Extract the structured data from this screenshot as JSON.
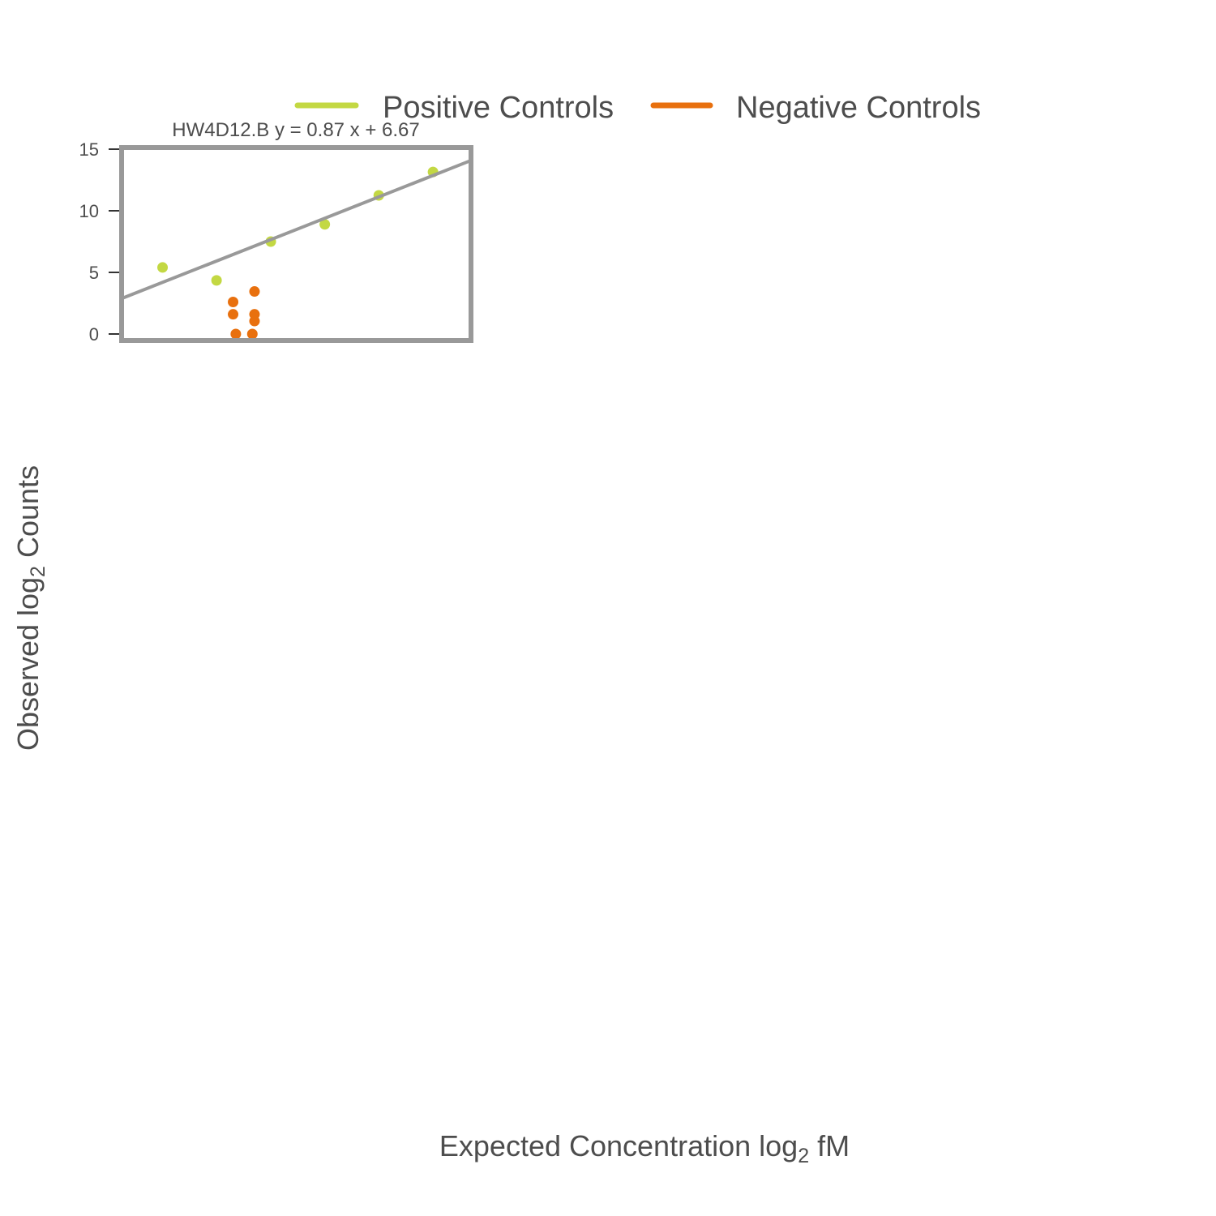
{
  "chart_data": {
    "type": "scatter",
    "title": "HW4D12.B y = 0.87 x + 6.67",
    "xlabel_main": "Expected Concentration log",
    "xlabel_sub": "2",
    "xlabel_tail": " fM",
    "ylabel_main": "Observed log",
    "ylabel_sub": "2",
    "ylabel_tail": " Counts",
    "ylim": [
      0,
      15
    ],
    "yticks": [
      {
        "value": 0,
        "label": "0"
      },
      {
        "value": 5,
        "label": "5"
      },
      {
        "value": 10,
        "label": "10"
      },
      {
        "value": 15,
        "label": "15"
      }
    ],
    "xlim": [
      -4.36,
      8.52
    ],
    "legend": {
      "placement": "top",
      "items": [
        {
          "label": "Positive Controls",
          "color": "#c3d843"
        },
        {
          "label": "Negative Controls",
          "color": "#e8700e"
        }
      ]
    },
    "fit": {
      "slope": 0.87,
      "intercept": 6.67,
      "color": "#999999"
    },
    "series": [
      {
        "name": "Positive Controls",
        "color": "#c3d843",
        "points": [
          {
            "x": -2.85,
            "y": 5.4
          },
          {
            "x": -0.86,
            "y": 4.35
          },
          {
            "x": 1.14,
            "y": 7.5
          },
          {
            "x": 3.13,
            "y": 8.9
          },
          {
            "x": 5.12,
            "y": 11.25
          },
          {
            "x": 7.12,
            "y": 13.15
          }
        ]
      },
      {
        "name": "Negative Controls",
        "color": "#e8700e",
        "points": [
          {
            "x": -0.25,
            "y": 2.6
          },
          {
            "x": -0.25,
            "y": 1.6
          },
          {
            "x": -0.15,
            "y": 0
          },
          {
            "x": 0.46,
            "y": 0
          },
          {
            "x": 0.54,
            "y": 3.45
          },
          {
            "x": 0.54,
            "y": 1.6
          },
          {
            "x": 0.54,
            "y": 1.05
          }
        ]
      }
    ]
  }
}
